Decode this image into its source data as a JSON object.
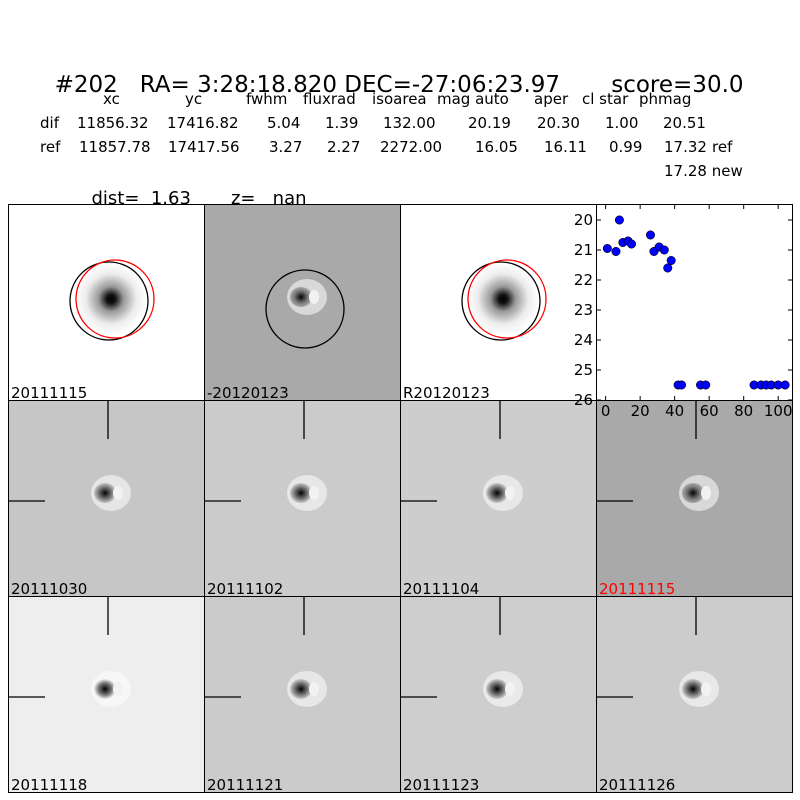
{
  "title": {
    "id": "#202",
    "ra": "RA= 3:28:18.820",
    "dec": "DEC=-27:06:23.97",
    "score": "score=30.0"
  },
  "table": {
    "headers": [
      "xc",
      "yc",
      "fwhm",
      "fluxrad",
      "isoarea",
      "mag auto",
      "aper",
      "cl star",
      "phmag"
    ],
    "rows": [
      {
        "label": "dif",
        "values": [
          "11856.32",
          "17416.82",
          "5.04",
          "1.39",
          "132.00",
          "20.19",
          "20.30",
          "1.00",
          "20.51"
        ],
        "suffix": ""
      },
      {
        "label": "ref",
        "values": [
          "11857.78",
          "17417.56",
          "3.27",
          "2.27",
          "2272.00",
          "16.05",
          "16.11",
          "0.99",
          "17.32"
        ],
        "suffix": "ref"
      }
    ],
    "new_line": "17.28 new"
  },
  "dist_line": {
    "dist": "dist=  1.63",
    "z": "z=   nan"
  },
  "stamps": [
    {
      "label": "20111115",
      "bg": "#ffffff",
      "kind": "ref",
      "circles": true,
      "red": false
    },
    {
      "label": "-20120123",
      "bg": "#a9a9a9",
      "kind": "dipole",
      "circles": "black",
      "red": false
    },
    {
      "label": "R20120123",
      "bg": "#ffffff",
      "kind": "ref",
      "circles": true,
      "red": false
    },
    {
      "label": "20111030",
      "bg": "#c6c6c6",
      "kind": "dipole",
      "crosshair": true,
      "red": false
    },
    {
      "label": "20111102",
      "bg": "#cbcbcb",
      "kind": "dipole",
      "crosshair": true,
      "red": false
    },
    {
      "label": "20111104",
      "bg": "#cdcdcd",
      "kind": "dipole",
      "crosshair": true,
      "red": false
    },
    {
      "label": "20111115",
      "bg": "#a9a9a9",
      "kind": "dipole",
      "crosshair": true,
      "red": true
    },
    {
      "label": "20111118",
      "bg": "#eeeeee",
      "kind": "dipole",
      "crosshair": true,
      "red": false
    },
    {
      "label": "20111121",
      "bg": "#cbcbcb",
      "kind": "dipole",
      "crosshair": true,
      "red": false
    },
    {
      "label": "20111123",
      "bg": "#cecece",
      "kind": "dipole",
      "crosshair": true,
      "red": false
    },
    {
      "label": "20111126",
      "bg": "#cccccc",
      "kind": "dipole",
      "crosshair": true,
      "red": false
    }
  ],
  "chart_data": {
    "type": "scatter",
    "xlim": [
      -5,
      108
    ],
    "ylim": [
      26,
      19.5
    ],
    "inverted_y": true,
    "xticks": [
      "0",
      "20",
      "40",
      "60",
      "80",
      "100"
    ],
    "xtick_values": [
      0,
      20,
      40,
      60,
      80,
      100
    ],
    "yticks": [
      "20",
      "21",
      "22",
      "23",
      "24",
      "25",
      "26"
    ],
    "ytick_values": [
      20,
      21,
      22,
      23,
      24,
      25,
      26
    ],
    "marker_color": "#0000ff",
    "points": [
      {
        "x": 1,
        "y": 20.95
      },
      {
        "x": 6,
        "y": 21.05
      },
      {
        "x": 8,
        "y": 20.0
      },
      {
        "x": 10,
        "y": 20.75
      },
      {
        "x": 13,
        "y": 20.7
      },
      {
        "x": 15,
        "y": 20.8
      },
      {
        "x": 26,
        "y": 20.5
      },
      {
        "x": 28,
        "y": 21.05
      },
      {
        "x": 31,
        "y": 20.9
      },
      {
        "x": 34,
        "y": 21.0
      },
      {
        "x": 36,
        "y": 21.6
      },
      {
        "x": 38,
        "y": 21.35
      },
      {
        "x": 42,
        "y": 25.5
      },
      {
        "x": 44,
        "y": 25.5
      },
      {
        "x": 55,
        "y": 25.5
      },
      {
        "x": 58,
        "y": 25.5
      },
      {
        "x": 86,
        "y": 25.5
      },
      {
        "x": 90,
        "y": 25.5
      },
      {
        "x": 93,
        "y": 25.5
      },
      {
        "x": 96,
        "y": 25.5
      },
      {
        "x": 100,
        "y": 25.5
      },
      {
        "x": 104,
        "y": 25.5
      }
    ]
  }
}
